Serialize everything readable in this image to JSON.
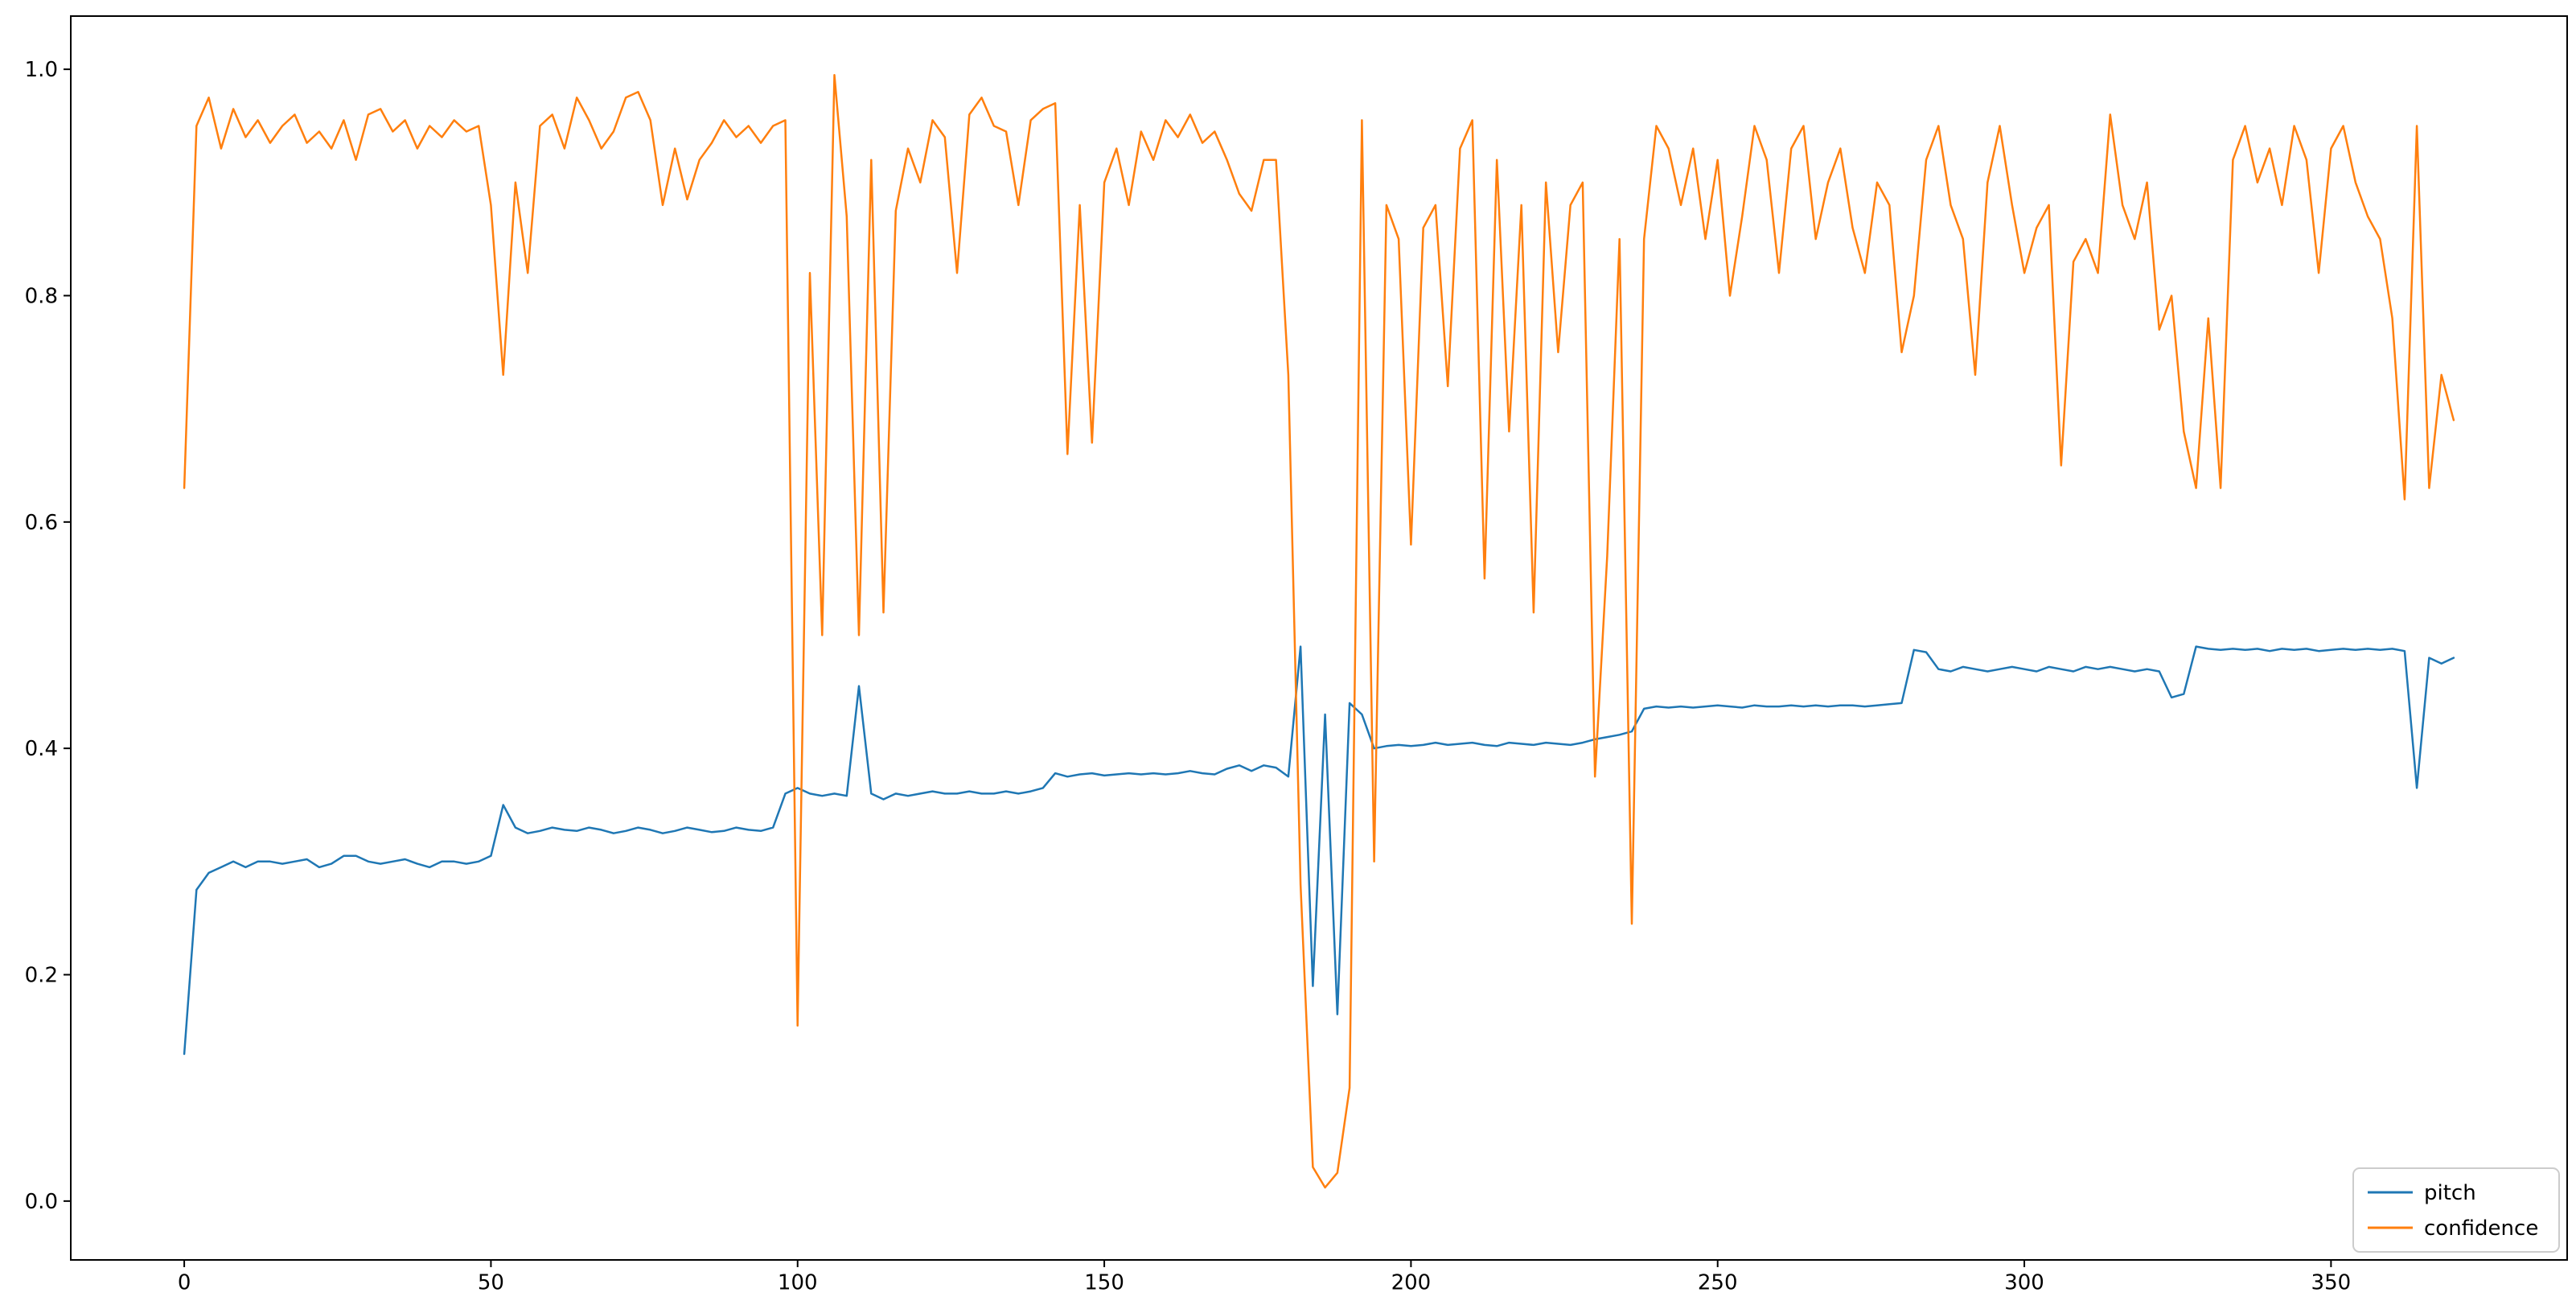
{
  "figure": {
    "background": "#ffffff",
    "border_color": "#000000",
    "legend": {
      "border_color": "#cccccc",
      "background": "#ffffff",
      "entries": [
        "pitch",
        "confidence"
      ]
    }
  },
  "chart_data": {
    "type": "line",
    "title": "",
    "xlabel": "",
    "ylabel": "",
    "xlim": [
      -18.5,
      388.5
    ],
    "ylim": [
      -0.052,
      1.047
    ],
    "grid": false,
    "legend_position": "lower right",
    "xticks": {
      "values": [
        0,
        50,
        100,
        150,
        200,
        250,
        300,
        350
      ],
      "labels": [
        "0",
        "50",
        "100",
        "150",
        "200",
        "250",
        "300",
        "350"
      ]
    },
    "yticks": {
      "values": [
        0.0,
        0.2,
        0.4,
        0.6,
        0.8,
        1.0
      ],
      "labels": [
        "0.0",
        "0.2",
        "0.4",
        "0.6",
        "0.8",
        "1.0"
      ]
    },
    "x_start": 0,
    "x_step": 2,
    "series": [
      {
        "name": "pitch",
        "color": "#1f77b4",
        "values": [
          0.13,
          0.275,
          0.29,
          0.295,
          0.3,
          0.295,
          0.3,
          0.3,
          0.298,
          0.3,
          0.302,
          0.295,
          0.298,
          0.305,
          0.305,
          0.3,
          0.298,
          0.3,
          0.302,
          0.298,
          0.295,
          0.3,
          0.3,
          0.298,
          0.3,
          0.305,
          0.35,
          0.33,
          0.325,
          0.327,
          0.33,
          0.328,
          0.327,
          0.33,
          0.328,
          0.325,
          0.327,
          0.33,
          0.328,
          0.325,
          0.327,
          0.33,
          0.328,
          0.326,
          0.327,
          0.33,
          0.328,
          0.327,
          0.33,
          0.36,
          0.365,
          0.36,
          0.358,
          0.36,
          0.358,
          0.455,
          0.36,
          0.355,
          0.36,
          0.358,
          0.36,
          0.362,
          0.36,
          0.36,
          0.362,
          0.36,
          0.36,
          0.362,
          0.36,
          0.362,
          0.365,
          0.378,
          0.375,
          0.377,
          0.378,
          0.376,
          0.377,
          0.378,
          0.377,
          0.378,
          0.377,
          0.378,
          0.38,
          0.378,
          0.377,
          0.382,
          0.385,
          0.38,
          0.385,
          0.383,
          0.375,
          0.49,
          0.19,
          0.43,
          0.165,
          0.44,
          0.43,
          0.4,
          0.402,
          0.403,
          0.402,
          0.403,
          0.405,
          0.403,
          0.404,
          0.405,
          0.403,
          0.402,
          0.405,
          0.404,
          0.403,
          0.405,
          0.404,
          0.403,
          0.405,
          0.408,
          0.41,
          0.412,
          0.415,
          0.435,
          0.437,
          0.436,
          0.437,
          0.436,
          0.437,
          0.438,
          0.437,
          0.436,
          0.438,
          0.437,
          0.437,
          0.438,
          0.437,
          0.438,
          0.437,
          0.438,
          0.438,
          0.437,
          0.438,
          0.439,
          0.44,
          0.487,
          0.485,
          0.47,
          0.468,
          0.472,
          0.47,
          0.468,
          0.47,
          0.472,
          0.47,
          0.468,
          0.472,
          0.47,
          0.468,
          0.472,
          0.47,
          0.472,
          0.47,
          0.468,
          0.47,
          0.468,
          0.445,
          0.448,
          0.49,
          0.488,
          0.487,
          0.488,
          0.487,
          0.488,
          0.486,
          0.488,
          0.487,
          0.488,
          0.486,
          0.487,
          0.488,
          0.487,
          0.488,
          0.487,
          0.488,
          0.486,
          0.365,
          0.48,
          0.475,
          0.48
        ]
      },
      {
        "name": "confidence",
        "color": "#ff7f0e",
        "values": [
          0.63,
          0.95,
          0.975,
          0.93,
          0.965,
          0.94,
          0.955,
          0.935,
          0.95,
          0.96,
          0.935,
          0.945,
          0.93,
          0.955,
          0.92,
          0.96,
          0.965,
          0.945,
          0.955,
          0.93,
          0.95,
          0.94,
          0.955,
          0.945,
          0.95,
          0.88,
          0.73,
          0.9,
          0.82,
          0.95,
          0.96,
          0.93,
          0.975,
          0.955,
          0.93,
          0.945,
          0.975,
          0.98,
          0.955,
          0.88,
          0.93,
          0.885,
          0.92,
          0.935,
          0.955,
          0.94,
          0.95,
          0.935,
          0.95,
          0.955,
          0.155,
          0.82,
          0.5,
          0.995,
          0.87,
          0.5,
          0.92,
          0.52,
          0.875,
          0.93,
          0.9,
          0.955,
          0.94,
          0.82,
          0.96,
          0.975,
          0.95,
          0.945,
          0.88,
          0.955,
          0.965,
          0.97,
          0.66,
          0.88,
          0.67,
          0.9,
          0.93,
          0.88,
          0.945,
          0.92,
          0.955,
          0.94,
          0.96,
          0.935,
          0.945,
          0.92,
          0.89,
          0.875,
          0.92,
          0.92,
          0.73,
          0.28,
          0.03,
          0.012,
          0.025,
          0.1,
          0.955,
          0.3,
          0.88,
          0.85,
          0.58,
          0.86,
          0.88,
          0.72,
          0.93,
          0.955,
          0.55,
          0.92,
          0.68,
          0.88,
          0.52,
          0.9,
          0.75,
          0.88,
          0.9,
          0.375,
          0.57,
          0.85,
          0.245,
          0.85,
          0.95,
          0.93,
          0.88,
          0.93,
          0.85,
          0.92,
          0.8,
          0.87,
          0.95,
          0.92,
          0.82,
          0.93,
          0.95,
          0.85,
          0.9,
          0.93,
          0.86,
          0.82,
          0.9,
          0.88,
          0.75,
          0.8,
          0.92,
          0.95,
          0.88,
          0.85,
          0.73,
          0.9,
          0.95,
          0.88,
          0.82,
          0.86,
          0.88,
          0.65,
          0.83,
          0.85,
          0.82,
          0.96,
          0.88,
          0.85,
          0.9,
          0.77,
          0.8,
          0.68,
          0.63,
          0.78,
          0.63,
          0.92,
          0.95,
          0.9,
          0.93,
          0.88,
          0.95,
          0.92,
          0.82,
          0.93,
          0.95,
          0.9,
          0.87,
          0.85,
          0.78,
          0.62,
          0.95,
          0.63,
          0.73,
          0.69
        ]
      }
    ]
  }
}
